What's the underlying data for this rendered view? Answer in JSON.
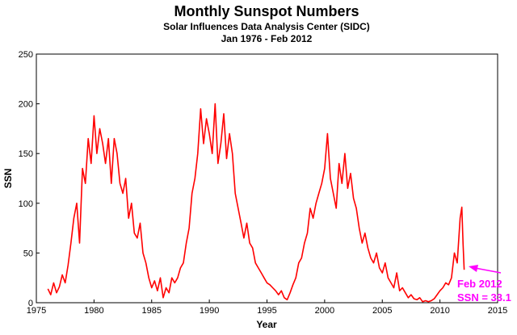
{
  "chart_data": {
    "type": "line",
    "title": "Monthly Sunspot Numbers",
    "subtitle": "Solar Influences Data Analysis Center (SIDC)",
    "subtitle2": "Jan 1976 - Feb 2012",
    "xlabel": "Year",
    "ylabel": "SSN",
    "xlim": [
      1975,
      2015
    ],
    "ylim": [
      0,
      250
    ],
    "xticks": [
      1975,
      1980,
      1985,
      1990,
      1995,
      2000,
      2005,
      2010,
      2015
    ],
    "yticks": [
      0,
      50,
      100,
      150,
      200,
      250
    ],
    "grid": false,
    "line_color": "#ff0000",
    "series": [
      {
        "values": [
          [
            1976.0,
            14
          ],
          [
            1976.25,
            8
          ],
          [
            1976.5,
            20
          ],
          [
            1976.75,
            10
          ],
          [
            1977.0,
            16
          ],
          [
            1977.25,
            28
          ],
          [
            1977.5,
            20
          ],
          [
            1977.75,
            38
          ],
          [
            1978.0,
            60
          ],
          [
            1978.25,
            85
          ],
          [
            1978.5,
            100
          ],
          [
            1978.75,
            60
          ],
          [
            1979.0,
            135
          ],
          [
            1979.25,
            120
          ],
          [
            1979.5,
            165
          ],
          [
            1979.75,
            140
          ],
          [
            1980.0,
            188
          ],
          [
            1980.25,
            150
          ],
          [
            1980.5,
            175
          ],
          [
            1980.75,
            160
          ],
          [
            1981.0,
            140
          ],
          [
            1981.25,
            165
          ],
          [
            1981.5,
            120
          ],
          [
            1981.75,
            165
          ],
          [
            1982.0,
            150
          ],
          [
            1982.25,
            120
          ],
          [
            1982.5,
            110
          ],
          [
            1982.75,
            125
          ],
          [
            1983.0,
            85
          ],
          [
            1983.25,
            100
          ],
          [
            1983.5,
            70
          ],
          [
            1983.75,
            65
          ],
          [
            1984.0,
            80
          ],
          [
            1984.25,
            50
          ],
          [
            1984.5,
            40
          ],
          [
            1984.75,
            25
          ],
          [
            1985.0,
            15
          ],
          [
            1985.25,
            22
          ],
          [
            1985.5,
            12
          ],
          [
            1985.75,
            25
          ],
          [
            1986.0,
            5
          ],
          [
            1986.25,
            15
          ],
          [
            1986.5,
            10
          ],
          [
            1986.75,
            25
          ],
          [
            1987.0,
            20
          ],
          [
            1987.25,
            25
          ],
          [
            1987.5,
            35
          ],
          [
            1987.75,
            40
          ],
          [
            1988.0,
            60
          ],
          [
            1988.25,
            75
          ],
          [
            1988.5,
            110
          ],
          [
            1988.75,
            125
          ],
          [
            1989.0,
            150
          ],
          [
            1989.25,
            195
          ],
          [
            1989.5,
            160
          ],
          [
            1989.75,
            185
          ],
          [
            1990.0,
            170
          ],
          [
            1990.25,
            150
          ],
          [
            1990.5,
            200
          ],
          [
            1990.75,
            140
          ],
          [
            1991.0,
            160
          ],
          [
            1991.25,
            190
          ],
          [
            1991.5,
            145
          ],
          [
            1991.75,
            170
          ],
          [
            1992.0,
            150
          ],
          [
            1992.25,
            110
          ],
          [
            1992.5,
            95
          ],
          [
            1992.75,
            80
          ],
          [
            1993.0,
            65
          ],
          [
            1993.25,
            80
          ],
          [
            1993.5,
            60
          ],
          [
            1993.75,
            55
          ],
          [
            1994.0,
            40
          ],
          [
            1994.25,
            35
          ],
          [
            1994.5,
            30
          ],
          [
            1994.75,
            25
          ],
          [
            1995.0,
            20
          ],
          [
            1995.25,
            18
          ],
          [
            1995.5,
            15
          ],
          [
            1995.75,
            12
          ],
          [
            1996.0,
            8
          ],
          [
            1996.25,
            12
          ],
          [
            1996.5,
            5
          ],
          [
            1996.75,
            3
          ],
          [
            1997.0,
            10
          ],
          [
            1997.25,
            18
          ],
          [
            1997.5,
            25
          ],
          [
            1997.75,
            40
          ],
          [
            1998.0,
            45
          ],
          [
            1998.25,
            60
          ],
          [
            1998.5,
            70
          ],
          [
            1998.75,
            95
          ],
          [
            1999.0,
            85
          ],
          [
            1999.25,
            100
          ],
          [
            1999.5,
            110
          ],
          [
            1999.75,
            120
          ],
          [
            2000.0,
            135
          ],
          [
            2000.25,
            170
          ],
          [
            2000.5,
            125
          ],
          [
            2000.75,
            110
          ],
          [
            2001.0,
            95
          ],
          [
            2001.25,
            140
          ],
          [
            2001.5,
            120
          ],
          [
            2001.75,
            150
          ],
          [
            2002.0,
            115
          ],
          [
            2002.25,
            130
          ],
          [
            2002.5,
            105
          ],
          [
            2002.75,
            95
          ],
          [
            2003.0,
            75
          ],
          [
            2003.25,
            60
          ],
          [
            2003.5,
            70
          ],
          [
            2003.75,
            55
          ],
          [
            2004.0,
            45
          ],
          [
            2004.25,
            40
          ],
          [
            2004.5,
            50
          ],
          [
            2004.75,
            35
          ],
          [
            2005.0,
            30
          ],
          [
            2005.25,
            40
          ],
          [
            2005.5,
            25
          ],
          [
            2005.75,
            20
          ],
          [
            2006.0,
            15
          ],
          [
            2006.25,
            30
          ],
          [
            2006.5,
            12
          ],
          [
            2006.75,
            15
          ],
          [
            2007.0,
            10
          ],
          [
            2007.25,
            5
          ],
          [
            2007.5,
            8
          ],
          [
            2007.75,
            4
          ],
          [
            2008.0,
            3
          ],
          [
            2008.25,
            5
          ],
          [
            2008.5,
            1
          ],
          [
            2008.75,
            2
          ],
          [
            2009.0,
            1
          ],
          [
            2009.25,
            2
          ],
          [
            2009.5,
            4
          ],
          [
            2009.75,
            8
          ],
          [
            2010.0,
            12
          ],
          [
            2010.25,
            15
          ],
          [
            2010.5,
            20
          ],
          [
            2010.75,
            18
          ],
          [
            2011.0,
            25
          ],
          [
            2011.25,
            50
          ],
          [
            2011.5,
            40
          ],
          [
            2011.75,
            85
          ],
          [
            2011.9,
            96
          ],
          [
            2012.0,
            60
          ],
          [
            2012.1,
            33.1
          ]
        ]
      }
    ],
    "annotation": {
      "line1": "Feb 2012",
      "line2": "SSN = 33.1",
      "arrow_color": "#ff00ff",
      "target": [
        2012.1,
        33.1
      ]
    }
  }
}
